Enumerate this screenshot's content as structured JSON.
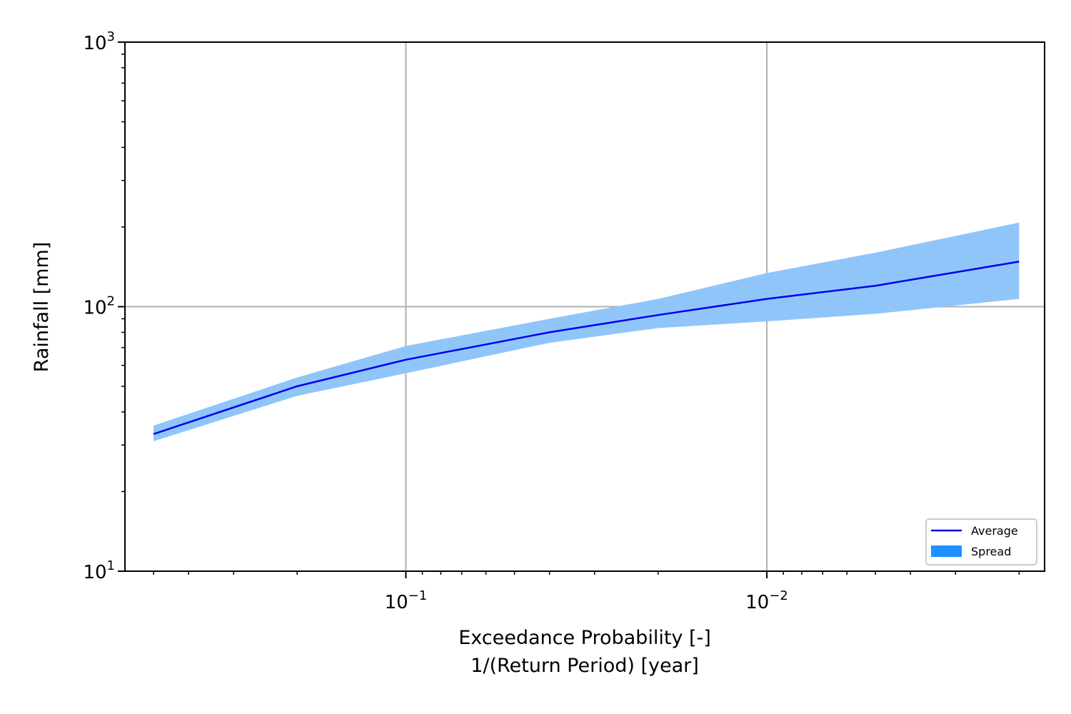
{
  "chart_data": {
    "type": "line",
    "xlabel": "Exceedance Probability [-]",
    "xlabel_line2": "1/(Return Period) [year]",
    "ylabel": "Rainfall [mm]",
    "xscale": "log",
    "yscale": "log",
    "x_reversed": true,
    "xlim": [
      0.6,
      0.0017
    ],
    "ylim": [
      10,
      1000
    ],
    "grid": true,
    "legend_position": "bottom-right",
    "x_ticks": [
      {
        "value": 0.1,
        "base": "10",
        "exp": "−1"
      },
      {
        "value": 0.01,
        "base": "10",
        "exp": "−2"
      }
    ],
    "y_ticks": [
      {
        "value": 10,
        "base": "10",
        "exp": "1"
      },
      {
        "value": 100,
        "base": "10",
        "exp": "2"
      },
      {
        "value": 1000,
        "base": "10",
        "exp": "3"
      }
    ],
    "x": [
      0.5,
      0.2,
      0.1,
      0.04,
      0.02,
      0.01,
      0.005,
      0.002
    ],
    "series": [
      {
        "name": "Average",
        "kind": "line",
        "color": "#0000ee",
        "values": [
          33,
          50,
          63,
          80,
          93,
          107,
          120,
          148
        ]
      },
      {
        "name": "Spread",
        "kind": "band",
        "color": "#1e90ff",
        "fill_color": "#90c5fa",
        "lower": [
          31,
          46,
          56,
          73,
          83,
          88,
          94,
          107
        ],
        "upper": [
          35.5,
          54,
          71,
          90,
          107,
          134,
          160,
          208
        ]
      }
    ]
  }
}
